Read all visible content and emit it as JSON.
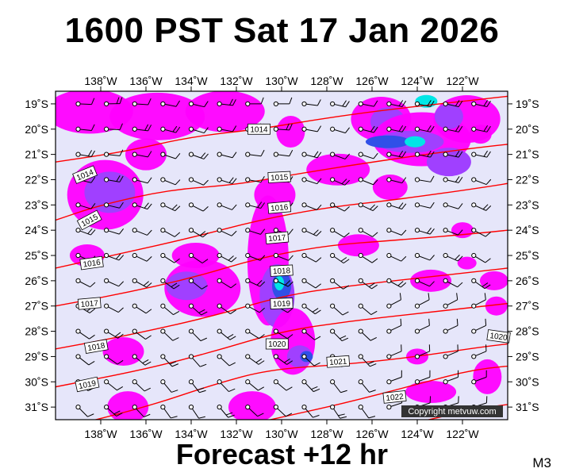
{
  "header": {
    "title": "1600 PST Sat 17 Jan 2026"
  },
  "footer": {
    "forecast_label": "Forecast +12 hr",
    "model_label": "M3"
  },
  "copyright": "Copyright metvuw.com",
  "map": {
    "lon_range": [
      -140,
      -120
    ],
    "lat_range": [
      -31.5,
      -18.5
    ],
    "lon_ticks": [
      "138˚W",
      "136˚W",
      "134˚W",
      "132˚W",
      "130˚W",
      "128˚W",
      "126˚W",
      "124˚W",
      "122˚W"
    ],
    "lat_ticks": [
      "19˚S",
      "20˚S",
      "21˚S",
      "22˚S",
      "23˚S",
      "24˚S",
      "25˚S",
      "26˚S",
      "27˚S",
      "28˚S",
      "29˚S",
      "30˚S",
      "31˚S"
    ],
    "isobar_labels": [
      "1014",
      "1014",
      "1015",
      "1015",
      "1016",
      "1016",
      "1017",
      "1017",
      "1018",
      "1018",
      "1019",
      "1019",
      "1020",
      "1020",
      "1021",
      "1022"
    ],
    "colors": {
      "background": "#e6e6fa",
      "precip_light": "#ff00ff",
      "precip_medium": "#a040ff",
      "precip_heavy": "#3050e8",
      "precip_extreme": "#00e6e6",
      "isobar": "#ff0000",
      "wind_barb": "#000000"
    }
  }
}
